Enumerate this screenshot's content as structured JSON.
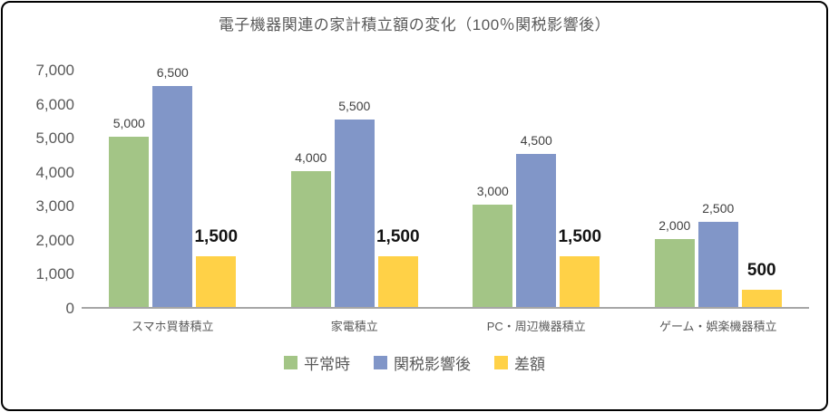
{
  "chart_data": {
    "type": "bar",
    "title": "電子機器関連の家計積立額の変化（100％関税影響後）",
    "xlabel": "",
    "ylabel": "",
    "categories": [
      "スマホ買替積立",
      "家電積立",
      "PC・周辺機器積立",
      "ゲーム・娯楽機器積立"
    ],
    "series": [
      {
        "name": "平常時",
        "color": "#A3C586",
        "values": [
          5000,
          4000,
          3000,
          2000
        ],
        "labels": [
          "5,000",
          "4,000",
          "3,000",
          "2,000"
        ],
        "label_style": "normal"
      },
      {
        "name": "関税影響後",
        "color": "#8196C8",
        "values": [
          6500,
          5500,
          4500,
          2500
        ],
        "labels": [
          "6,500",
          "5,500",
          "4,500",
          "2,500"
        ],
        "label_style": "normal"
      },
      {
        "name": "差額",
        "color": "#FFD147",
        "values": [
          1500,
          1500,
          1500,
          500
        ],
        "labels": [
          "1,500",
          "1,500",
          "1,500",
          "500"
        ],
        "label_style": "bold"
      }
    ],
    "y_axis": {
      "min": 0,
      "max": 7000,
      "step": 1000,
      "tick_labels": [
        "0",
        "1,000",
        "2,000",
        "3,000",
        "4,000",
        "5,000",
        "6,000",
        "7,000"
      ]
    },
    "ylim": [
      0,
      7000
    ],
    "grid": false,
    "legend_position": "bottom",
    "axis_line_color": "#A6A6A6",
    "text_color": "#595959"
  }
}
